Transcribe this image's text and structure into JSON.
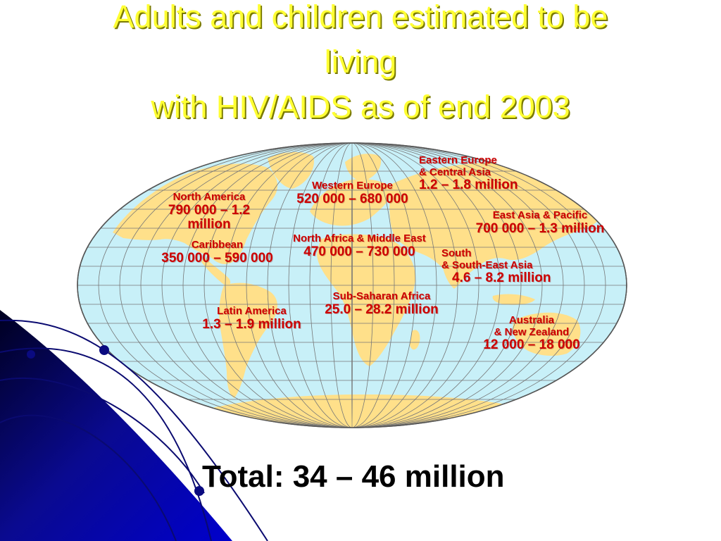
{
  "title": {
    "line1": "Adults and children estimated to be",
    "line2": "living",
    "line3": "with HIV/AIDS as of end 2003"
  },
  "regions": {
    "north_america": {
      "name": "North America",
      "value_line1": "790 000 – 1.2",
      "value_line2": "million"
    },
    "caribbean": {
      "name": "Caribbean",
      "value": "350 000 – 590 000"
    },
    "latin_america": {
      "name": "Latin America",
      "value": "1.3 – 1.9 million"
    },
    "western_europe": {
      "name": "Western Europe",
      "value": "520 000 – 680 000"
    },
    "north_africa": {
      "name": "North Africa & Middle East",
      "value": "470 000 – 730 000"
    },
    "sub_saharan": {
      "name": "Sub-Saharan Africa",
      "value": "25.0 – 28.2 million"
    },
    "eastern_europe": {
      "name_line1": "Eastern Europe",
      "name_line2": "& Central Asia",
      "value": "1.2 – 1.8 million"
    },
    "east_asia": {
      "name": "East Asia & Pacific",
      "value": "700 000 – 1.3 million"
    },
    "south_asia": {
      "name_line1": "South",
      "name_line2": "& South-East Asia",
      "value": "4.6 – 8.2 million"
    },
    "australia": {
      "name_line1": "Australia",
      "name_line2": "& New Zealand",
      "value": "12 000 – 18 000"
    }
  },
  "total": "Total: 34 – 46 million",
  "colors": {
    "ocean": "#c8f0f8",
    "land": "#ffe08a",
    "label": "#cc0000",
    "title": "#ffff33",
    "decor": "#0a0a80"
  }
}
